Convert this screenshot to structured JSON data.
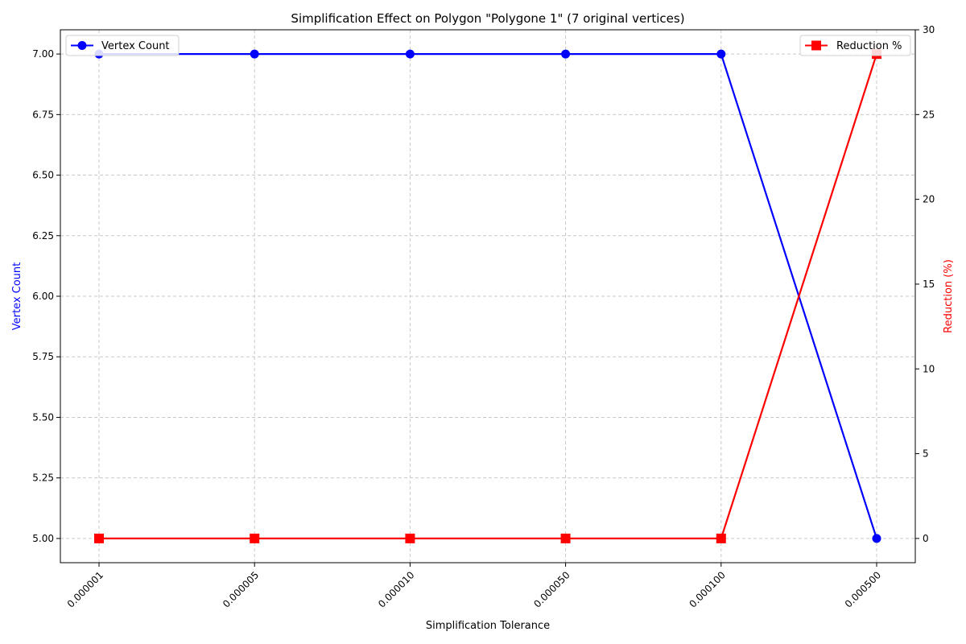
{
  "chart_data": {
    "type": "line",
    "title": "Simplification Effect on Polygon \"Polygone 1\" (7 original vertices)",
    "xlabel": "Simplification Tolerance",
    "ylabel_left": "Vertex Count",
    "ylabel_right": "Reduction (%)",
    "categories": [
      "0.000001",
      "0.000005",
      "0.000010",
      "0.000050",
      "0.000100",
      "0.000500"
    ],
    "series": [
      {
        "name": "Vertex Count",
        "axis": "left",
        "color": "#0000ff",
        "marker": "circle",
        "values": [
          7,
          7,
          7,
          7,
          7,
          5
        ]
      },
      {
        "name": "Reduction %",
        "axis": "right",
        "color": "#ff0000",
        "marker": "square",
        "values": [
          0,
          0,
          0,
          0,
          0,
          28.57
        ]
      }
    ],
    "ylim_left": [
      4.9,
      7.1
    ],
    "ylim_right": [
      -1.43,
      30
    ],
    "yticks_left": [
      "5.00",
      "5.25",
      "5.50",
      "5.75",
      "6.00",
      "6.25",
      "6.50",
      "6.75",
      "7.00"
    ],
    "yticks_right": [
      "0",
      "5",
      "10",
      "15",
      "20",
      "25",
      "30"
    ],
    "grid": true,
    "legend_left_position": "top-left",
    "legend_right_position": "top-right",
    "axis_colors": {
      "left_label": "#0000ff",
      "right_label": "#ff0000",
      "grid": "#c8c8c8"
    }
  }
}
